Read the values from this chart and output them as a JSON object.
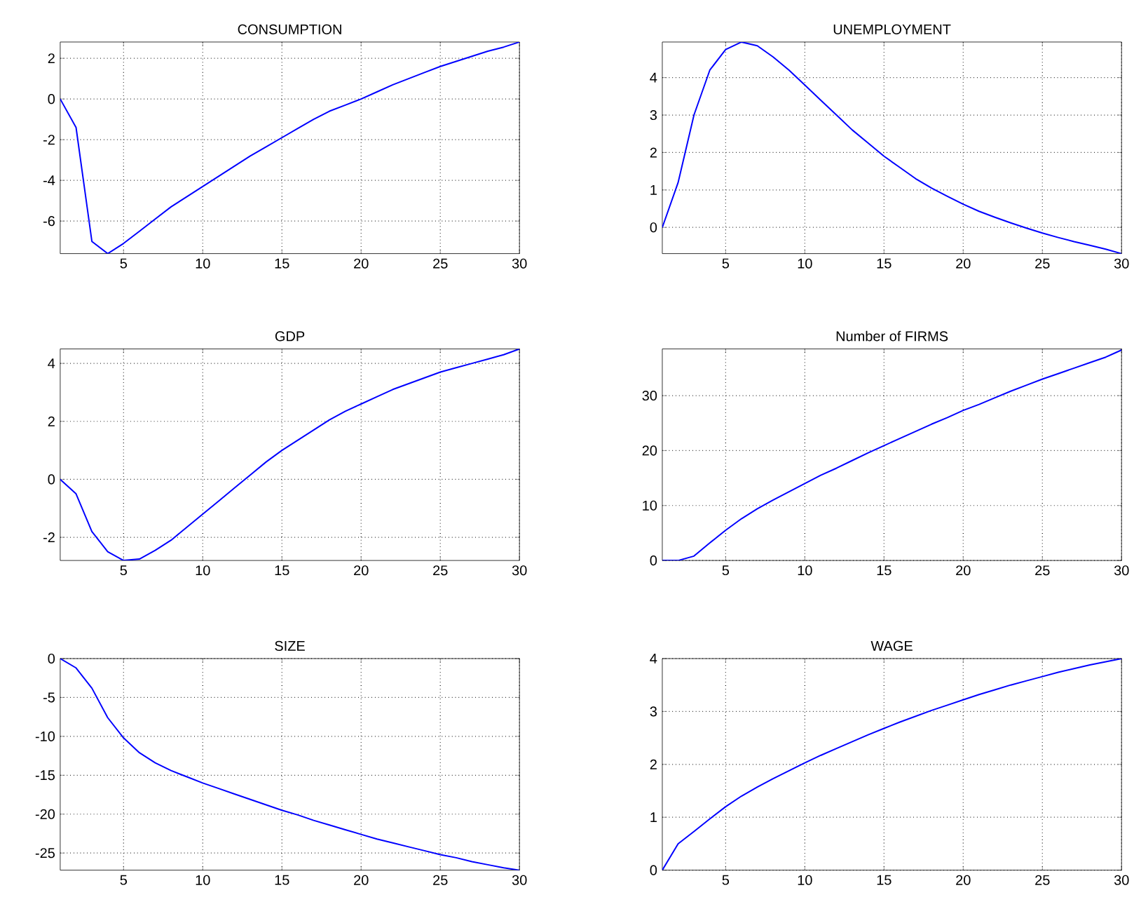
{
  "chart_data": [
    {
      "type": "line",
      "title": "CONSUMPTION",
      "x": [
        1,
        2,
        3,
        4,
        5,
        6,
        7,
        8,
        9,
        10,
        11,
        12,
        13,
        14,
        15,
        16,
        17,
        18,
        19,
        20,
        21,
        22,
        23,
        24,
        25,
        26,
        27,
        28,
        29,
        30
      ],
      "values": [
        0,
        -1.4,
        -7.0,
        -7.6,
        -7.1,
        -6.5,
        -5.9,
        -5.3,
        -4.8,
        -4.3,
        -3.8,
        -3.3,
        -2.8,
        -2.35,
        -1.9,
        -1.45,
        -1.0,
        -0.6,
        -0.3,
        0.0,
        0.35,
        0.7,
        1.0,
        1.3,
        1.6,
        1.85,
        2.1,
        2.35,
        2.55,
        2.8
      ],
      "color": "#0000ff",
      "xlim": [
        1,
        30
      ],
      "ylim": [
        -7.6,
        2.8
      ],
      "xticks": [
        5,
        10,
        15,
        20,
        25,
        30
      ],
      "yticks": [
        -6,
        -4,
        -2,
        0,
        2
      ],
      "grid": true
    },
    {
      "type": "line",
      "title": "UNEMPLOYMENT",
      "x": [
        1,
        2,
        3,
        4,
        5,
        6,
        7,
        8,
        9,
        10,
        11,
        12,
        13,
        14,
        15,
        16,
        17,
        18,
        19,
        20,
        21,
        22,
        23,
        24,
        25,
        26,
        27,
        28,
        29,
        30
      ],
      "values": [
        0,
        1.2,
        3.0,
        4.2,
        4.75,
        4.95,
        4.85,
        4.55,
        4.2,
        3.8,
        3.4,
        3.0,
        2.6,
        2.25,
        1.9,
        1.6,
        1.3,
        1.05,
        0.83,
        0.62,
        0.43,
        0.27,
        0.12,
        -0.02,
        -0.15,
        -0.27,
        -0.38,
        -0.48,
        -0.58,
        -0.7
      ],
      "color": "#0000ff",
      "xlim": [
        1,
        30
      ],
      "ylim": [
        -0.7,
        4.95
      ],
      "xticks": [
        5,
        10,
        15,
        20,
        25,
        30
      ],
      "yticks": [
        0,
        1,
        2,
        3,
        4
      ],
      "grid": true
    },
    {
      "type": "line",
      "title": "GDP",
      "x": [
        1,
        2,
        3,
        4,
        5,
        6,
        7,
        8,
        9,
        10,
        11,
        12,
        13,
        14,
        15,
        16,
        17,
        18,
        19,
        20,
        21,
        22,
        23,
        24,
        25,
        26,
        27,
        28,
        29,
        30
      ],
      "values": [
        0,
        -0.5,
        -1.8,
        -2.5,
        -2.8,
        -2.75,
        -2.45,
        -2.1,
        -1.65,
        -1.2,
        -0.75,
        -0.3,
        0.15,
        0.6,
        1.0,
        1.35,
        1.7,
        2.05,
        2.35,
        2.6,
        2.85,
        3.1,
        3.3,
        3.5,
        3.7,
        3.85,
        4.0,
        4.15,
        4.3,
        4.5
      ],
      "color": "#0000ff",
      "xlim": [
        1,
        30
      ],
      "ylim": [
        -2.8,
        4.5
      ],
      "xticks": [
        5,
        10,
        15,
        20,
        25,
        30
      ],
      "yticks": [
        -2,
        0,
        2,
        4
      ],
      "grid": true
    },
    {
      "type": "line",
      "title": "Number of FIRMS",
      "x": [
        1,
        2,
        3,
        4,
        5,
        6,
        7,
        8,
        9,
        10,
        11,
        12,
        13,
        14,
        15,
        16,
        17,
        18,
        19,
        20,
        21,
        22,
        23,
        24,
        25,
        26,
        27,
        28,
        29,
        30
      ],
      "values": [
        0,
        0,
        0.8,
        3.2,
        5.5,
        7.6,
        9.4,
        11,
        12.5,
        14,
        15.5,
        16.8,
        18.2,
        19.6,
        20.9,
        22.2,
        23.5,
        24.8,
        26.0,
        27.3,
        28.4,
        29.6,
        30.8,
        31.9,
        33.0,
        34.0,
        35.0,
        36.0,
        37.0,
        38.3
      ],
      "color": "#0000ff",
      "xlim": [
        1,
        30
      ],
      "ylim": [
        0,
        38.5
      ],
      "xticks": [
        5,
        10,
        15,
        20,
        25,
        30
      ],
      "yticks": [
        0,
        10,
        20,
        30
      ],
      "grid": true
    },
    {
      "type": "line",
      "title": "SIZE",
      "x": [
        1,
        2,
        3,
        4,
        5,
        6,
        7,
        8,
        9,
        10,
        11,
        12,
        13,
        14,
        15,
        16,
        17,
        18,
        19,
        20,
        21,
        22,
        23,
        24,
        25,
        26,
        27,
        28,
        29,
        30
      ],
      "values": [
        0,
        -1.2,
        -3.8,
        -7.6,
        -10.2,
        -12.1,
        -13.4,
        -14.4,
        -15.2,
        -16.0,
        -16.7,
        -17.4,
        -18.1,
        -18.8,
        -19.5,
        -20.1,
        -20.8,
        -21.4,
        -22.0,
        -22.6,
        -23.2,
        -23.7,
        -24.2,
        -24.7,
        -25.2,
        -25.6,
        -26.1,
        -26.5,
        -26.9,
        -27.2
      ],
      "color": "#0000ff",
      "xlim": [
        1,
        30
      ],
      "ylim": [
        -27.2,
        0
      ],
      "xticks": [
        5,
        10,
        15,
        20,
        25,
        30
      ],
      "yticks": [
        -25,
        -20,
        -15,
        -10,
        -5,
        0
      ],
      "grid": true
    },
    {
      "type": "line",
      "title": "WAGE",
      "x": [
        1,
        2,
        3,
        4,
        5,
        6,
        7,
        8,
        9,
        10,
        11,
        12,
        13,
        14,
        15,
        16,
        17,
        18,
        19,
        20,
        21,
        22,
        23,
        24,
        25,
        26,
        27,
        28,
        29,
        30
      ],
      "values": [
        0,
        0.5,
        0.73,
        0.97,
        1.2,
        1.4,
        1.57,
        1.73,
        1.88,
        2.03,
        2.17,
        2.3,
        2.43,
        2.56,
        2.68,
        2.8,
        2.91,
        3.02,
        3.12,
        3.22,
        3.32,
        3.41,
        3.5,
        3.58,
        3.66,
        3.74,
        3.81,
        3.88,
        3.94,
        4.0
      ],
      "color": "#0000ff",
      "xlim": [
        1,
        30
      ],
      "ylim": [
        0,
        4
      ],
      "xticks": [
        5,
        10,
        15,
        20,
        25,
        30
      ],
      "yticks": [
        0,
        1,
        2,
        3,
        4
      ],
      "grid": true
    }
  ]
}
